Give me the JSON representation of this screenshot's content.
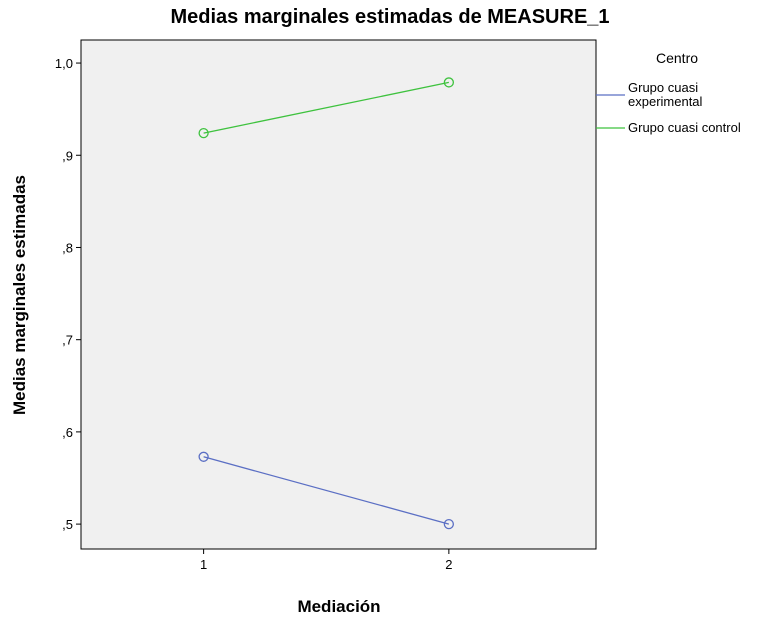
{
  "chart_data": {
    "type": "line",
    "title": "Medias marginales estimadas de MEASURE_1",
    "xlabel": "Mediación",
    "ylabel": "Medias marginales estimadas",
    "x": [
      "1",
      "2"
    ],
    "xlim": [
      0.5,
      2.6
    ],
    "ylim": [
      0.473,
      1.025
    ],
    "yticks": [
      0.5,
      0.6,
      0.7,
      0.8,
      0.9,
      1.0
    ],
    "ytick_labels": [
      ",5",
      ",6",
      ",7",
      ",8",
      ",9",
      "1,0"
    ],
    "grid": false,
    "legend_title": "Centro",
    "legend_position": "right",
    "plot_background": "#f0f0f0",
    "series": [
      {
        "name": "Grupo cuasi experimental",
        "name_lines": [
          "Grupo cuasi",
          "experimental"
        ],
        "values": [
          0.573,
          0.5
        ],
        "color": "#5b6fc4",
        "marker": "circle-open"
      },
      {
        "name": "Grupo cuasi control",
        "name_lines": [
          "Grupo cuasi control"
        ],
        "values": [
          0.924,
          0.979
        ],
        "color": "#3ec23e",
        "marker": "circle-open"
      }
    ]
  }
}
